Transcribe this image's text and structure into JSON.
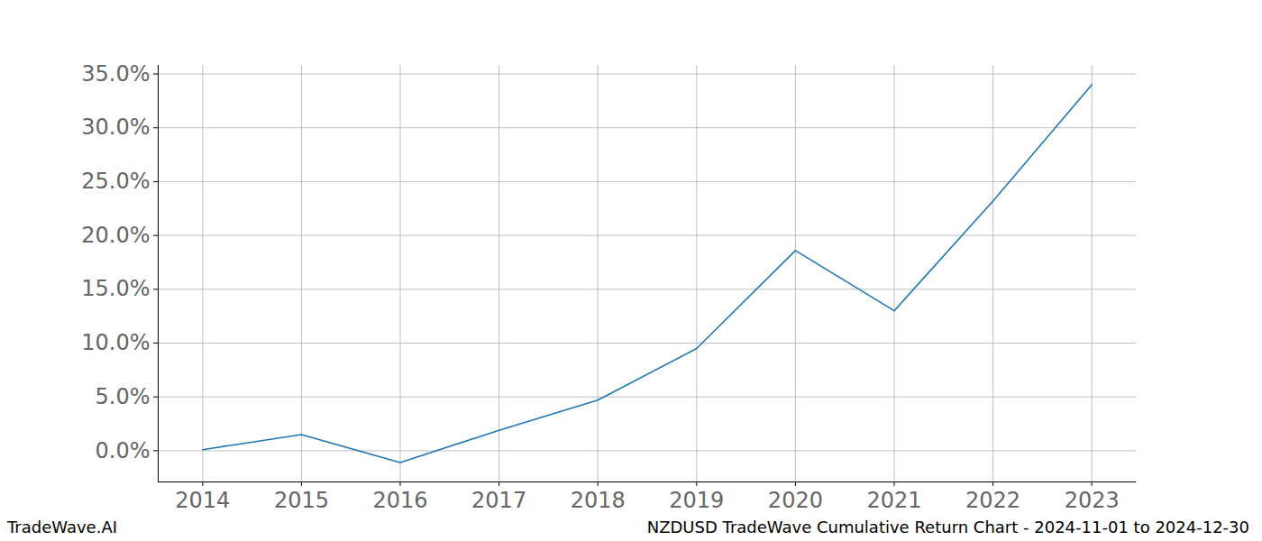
{
  "chart_data": {
    "type": "line",
    "source": "TradeWave.AI",
    "caption": "NZDUSD TradeWave Cumulative Return Chart - 2024-11-01 to 2024-12-30",
    "x": [
      2014,
      2015,
      2016,
      2017,
      2018,
      2019,
      2020,
      2021,
      2022,
      2023
    ],
    "values": [
      0.1,
      1.5,
      -1.1,
      1.9,
      4.7,
      9.5,
      18.6,
      13.0,
      23.2,
      34.0
    ],
    "color": "#1f77b4",
    "xlim": [
      2013.55,
      2023.45
    ],
    "xticks": [
      2014,
      2015,
      2016,
      2017,
      2018,
      2019,
      2020,
      2021,
      2022,
      2023
    ],
    "ylim": [
      -2.9,
      35.8
    ],
    "yticks": [
      {
        "value": 0,
        "label": "0.0%"
      },
      {
        "value": 5,
        "label": "5.0%"
      },
      {
        "value": 10,
        "label": "10.0%"
      },
      {
        "value": 15,
        "label": "15.0%"
      },
      {
        "value": 20,
        "label": "20.0%"
      },
      {
        "value": 25,
        "label": "25.0%"
      },
      {
        "value": 30,
        "label": "30.0%"
      },
      {
        "value": 35,
        "label": "35.0%"
      }
    ],
    "grid": true
  }
}
